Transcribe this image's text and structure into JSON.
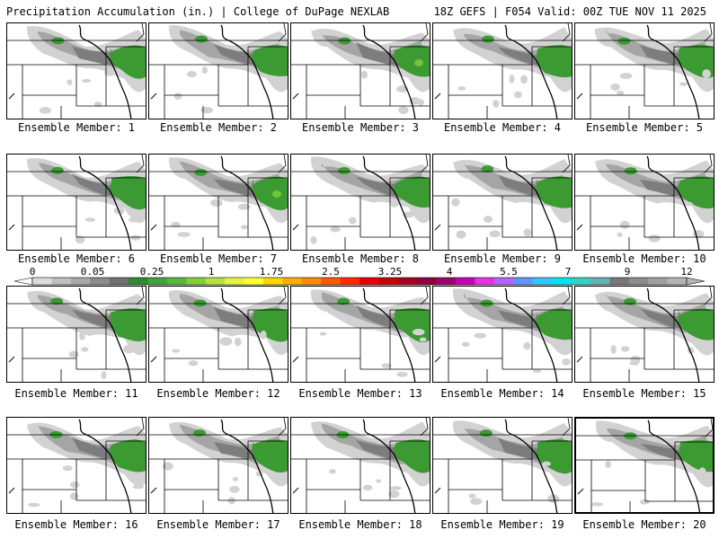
{
  "header": {
    "title": "Precipitation Accumulation (in.) | College of DuPage NEXLAB",
    "run_info": "18Z GEFS | F054 Valid: 00Z TUE NOV 11 2025"
  },
  "members": [
    {
      "label": "Ensemble Member: 1"
    },
    {
      "label": "Ensemble Member: 2"
    },
    {
      "label": "Ensemble Member: 3"
    },
    {
      "label": "Ensemble Member: 4"
    },
    {
      "label": "Ensemble Member: 5"
    },
    {
      "label": "Ensemble Member: 6"
    },
    {
      "label": "Ensemble Member: 7"
    },
    {
      "label": "Ensemble Member: 8"
    },
    {
      "label": "Ensemble Member: 9"
    },
    {
      "label": "Ensemble Member: 10"
    },
    {
      "label": "Ensemble Member: 11"
    },
    {
      "label": "Ensemble Member: 12"
    },
    {
      "label": "Ensemble Member: 13"
    },
    {
      "label": "Ensemble Member: 14"
    },
    {
      "label": "Ensemble Member: 15"
    },
    {
      "label": "Ensemble Member: 16"
    },
    {
      "label": "Ensemble Member: 17"
    },
    {
      "label": "Ensemble Member: 18"
    },
    {
      "label": "Ensemble Member: 19"
    },
    {
      "label": "Ensemble Member: 20",
      "selected": true
    }
  ],
  "legend": {
    "labels": [
      "0",
      "0.05",
      "0.25",
      "1",
      "1.75",
      "2.5",
      "3.25",
      "4",
      "5.5",
      "7",
      "9",
      "12"
    ],
    "colors": [
      "#dcdcdc",
      "#c0c0c0",
      "#a8a8a8",
      "#8c8c8c",
      "#707070",
      "#2e8b2e",
      "#3fa53f",
      "#55b83a",
      "#7fd13a",
      "#b4e43c",
      "#e6f53c",
      "#ffff30",
      "#ffd700",
      "#ffae00",
      "#ff8a00",
      "#ff5a00",
      "#ff2a00",
      "#e60000",
      "#c80000",
      "#aa0020",
      "#8c0040",
      "#a00070",
      "#c800b4",
      "#e632e6",
      "#b464ff",
      "#6496ff",
      "#32c8ff",
      "#00e6f0",
      "#32d2c8",
      "#64b4b4",
      "#787878",
      "#8c8c8c",
      "#a0a0a0",
      "#b4b4b4"
    ]
  },
  "colors": {
    "light_gray": "#d2d2d2",
    "mid_gray": "#a5a5a5",
    "dark_gray": "#7d7d7d",
    "green": "#3c9a32",
    "bright_green": "#74c43a",
    "border": "#000000"
  }
}
